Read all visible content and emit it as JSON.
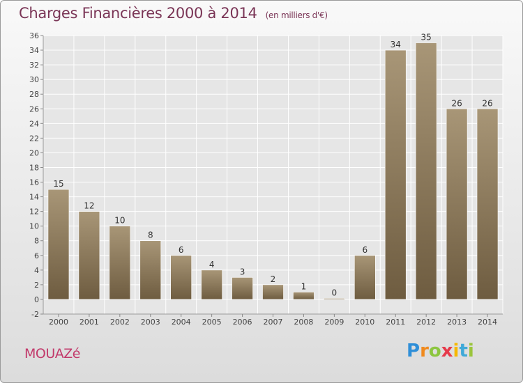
{
  "title": "Charges Financières 2000 à 2014",
  "unit_note": "(en milliers d'€)",
  "commune": "MOUAZé",
  "brand": {
    "name": "Proxiti",
    "letters": [
      "P",
      "r",
      "o",
      "x",
      "i",
      "t",
      "i"
    ]
  },
  "colors": {
    "bar_light": "#a89677",
    "bar_dark": "#6e5c40",
    "title": "#7a3556",
    "commune": "#c23a6b"
  },
  "chart_data": {
    "type": "bar",
    "title": "Charges Financières 2000 à 2014",
    "categories": [
      "2000",
      "2001",
      "2002",
      "2003",
      "2004",
      "2005",
      "2006",
      "2007",
      "2008",
      "2009",
      "2010",
      "2011",
      "2012",
      "2013",
      "2014"
    ],
    "values": [
      15,
      12,
      10,
      8,
      6,
      4,
      3,
      2,
      1,
      0,
      6,
      34,
      35,
      26,
      26
    ],
    "ylim": [
      -2,
      36
    ],
    "yticks": [
      -2,
      0,
      2,
      4,
      6,
      8,
      10,
      12,
      14,
      16,
      18,
      20,
      22,
      24,
      26,
      28,
      30,
      32,
      34,
      36
    ],
    "grid": true,
    "xlabel": "",
    "ylabel": ""
  }
}
